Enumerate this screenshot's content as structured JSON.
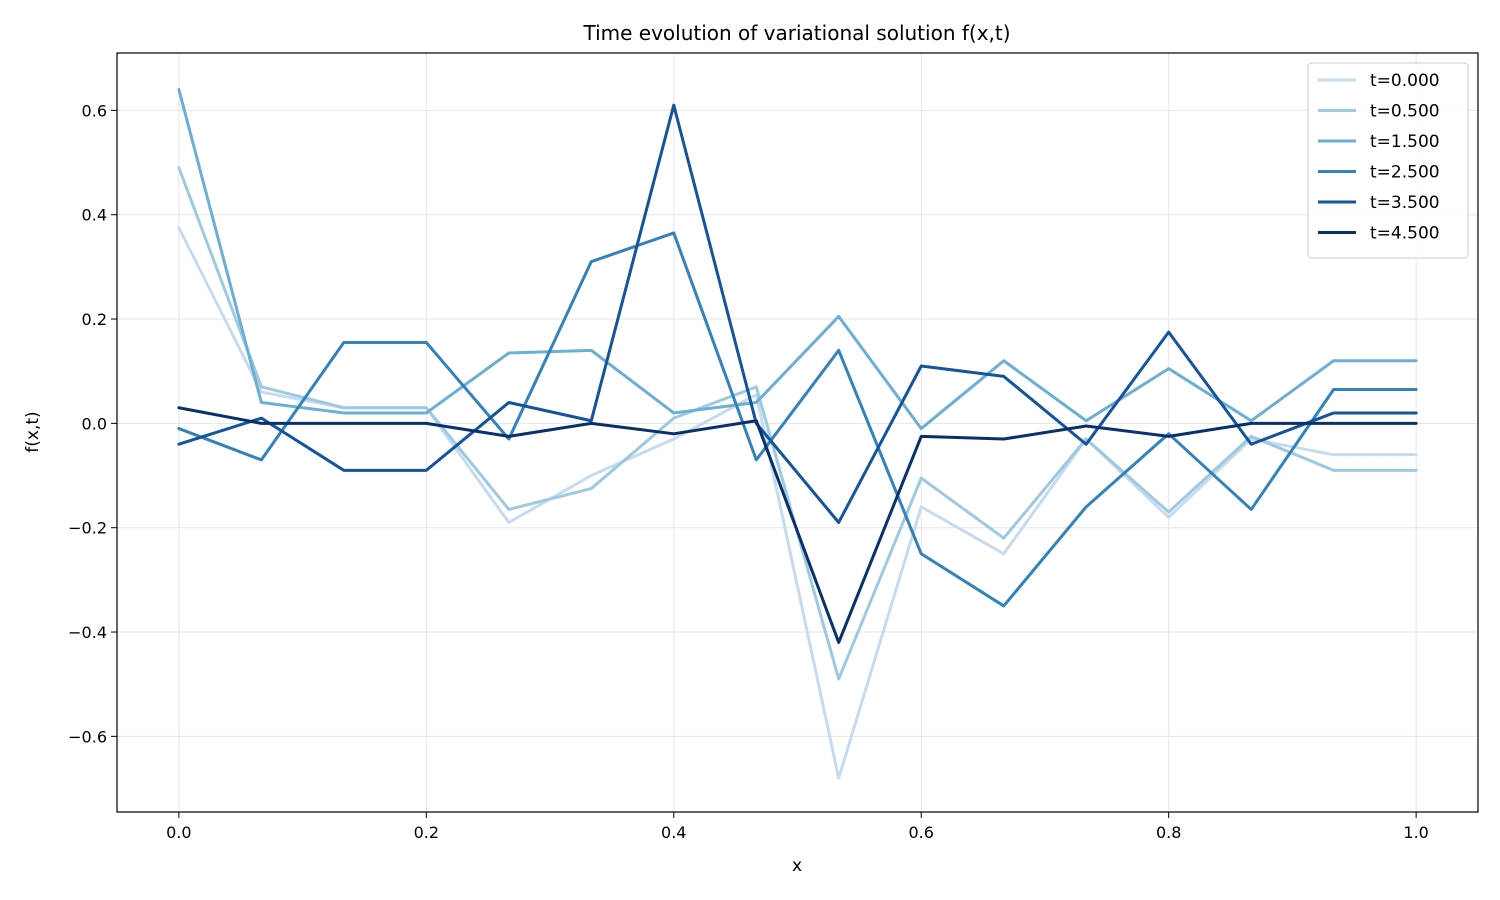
{
  "chart_data": {
    "type": "line",
    "title": "Time evolution of variational solution f(x,t)",
    "xlabel": "x",
    "ylabel": "f(x,t)",
    "xlim": [
      -0.05,
      1.05
    ],
    "ylim": [
      -0.745,
      0.71
    ],
    "xticks": [
      0.0,
      0.2,
      0.4,
      0.6,
      0.8,
      1.0
    ],
    "xtick_labels": [
      "0.0",
      "0.2",
      "0.4",
      "0.6",
      "0.8",
      "1.0"
    ],
    "yticks": [
      -0.6,
      -0.4,
      -0.2,
      0.0,
      0.2,
      0.4,
      0.6
    ],
    "ytick_labels": [
      "−0.6",
      "−0.4",
      "−0.2",
      "0.0",
      "0.2",
      "0.4",
      "0.6"
    ],
    "grid": true,
    "legend_position": "top-right",
    "x": [
      0.0,
      0.0667,
      0.1333,
      0.2,
      0.2667,
      0.3333,
      0.4,
      0.4667,
      0.5333,
      0.6,
      0.6667,
      0.7333,
      0.8,
      0.8667,
      0.9333,
      1.0
    ],
    "series": [
      {
        "name": "t=0.000",
        "color": "#c6dbef",
        "values": [
          0.375,
          0.06,
          0.03,
          0.03,
          -0.19,
          -0.1,
          -0.03,
          0.055,
          -0.68,
          -0.16,
          -0.25,
          -0.03,
          -0.18,
          -0.03,
          -0.06,
          -0.06
        ]
      },
      {
        "name": "t=0.500",
        "color": "#9ecae1",
        "values": [
          0.49,
          0.07,
          0.03,
          0.03,
          -0.165,
          -0.125,
          0.01,
          0.07,
          -0.49,
          -0.105,
          -0.22,
          -0.03,
          -0.17,
          -0.025,
          -0.09,
          -0.09
        ]
      },
      {
        "name": "t=1.500",
        "color": "#6baed6",
        "values": [
          0.64,
          0.04,
          0.02,
          0.02,
          0.135,
          0.14,
          0.02,
          0.04,
          0.205,
          -0.01,
          0.12,
          0.005,
          0.105,
          0.005,
          0.12,
          0.12
        ]
      },
      {
        "name": "t=2.500",
        "color": "#3182bd",
        "values": [
          -0.01,
          -0.07,
          0.155,
          0.155,
          -0.03,
          0.31,
          0.365,
          -0.07,
          0.14,
          -0.25,
          -0.35,
          -0.16,
          -0.02,
          -0.165,
          0.065,
          0.065
        ]
      },
      {
        "name": "t=3.500",
        "color": "#14549c",
        "values": [
          -0.04,
          0.01,
          -0.09,
          -0.09,
          0.04,
          0.005,
          0.61,
          0.0,
          -0.19,
          0.11,
          0.09,
          -0.04,
          0.175,
          -0.04,
          0.02,
          0.02
        ]
      },
      {
        "name": "t=4.500",
        "color": "#08306b",
        "values": [
          0.03,
          0.0,
          0.0,
          0.0,
          -0.025,
          0.0,
          -0.02,
          0.005,
          -0.42,
          -0.025,
          -0.03,
          -0.005,
          -0.025,
          0.0,
          0.0,
          0.0
        ]
      }
    ]
  }
}
